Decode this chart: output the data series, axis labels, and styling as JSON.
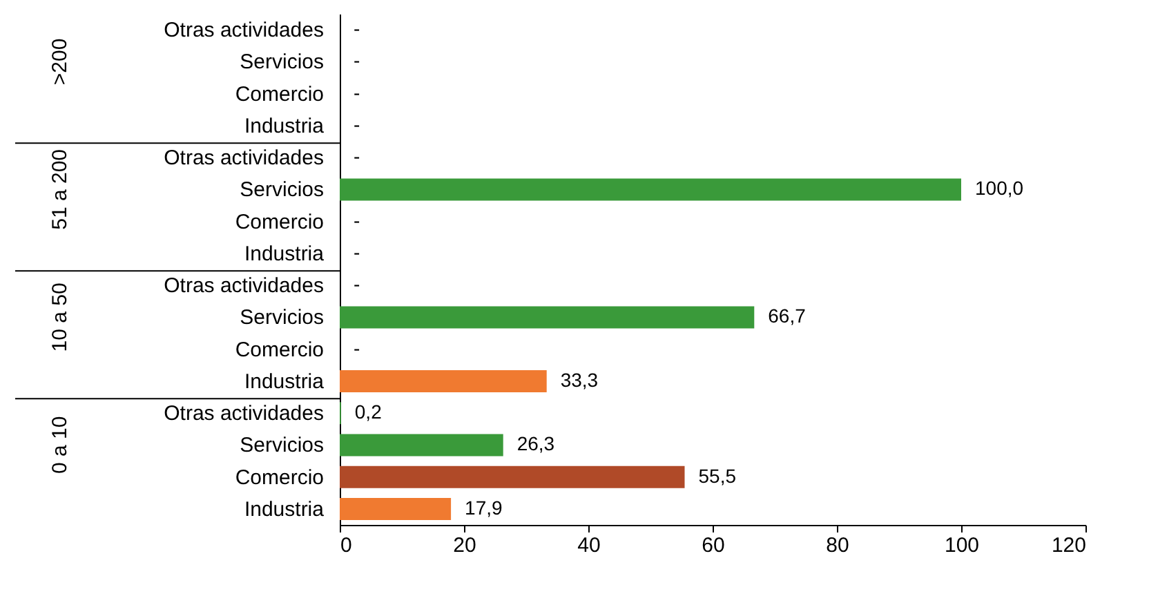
{
  "chart_data": {
    "type": "bar",
    "orientation": "horizontal",
    "categories": [
      "Otras actividades",
      "Servicios",
      "Comercio",
      "Industria",
      "Otras actividades",
      "Servicios",
      "Comercio",
      "Industria",
      "Otras actividades",
      "Servicios",
      "Comercio",
      "Industria",
      "Otras actividades",
      "Servicios",
      "Comercio",
      "Industria"
    ],
    "values": [
      null,
      null,
      null,
      null,
      null,
      100.0,
      null,
      null,
      null,
      66.7,
      null,
      33.3,
      0.2,
      26.3,
      55.5,
      17.9
    ],
    "value_labels": [
      "-",
      "-",
      "-",
      "-",
      "-",
      "100,0",
      "-",
      "-",
      "-",
      "66,7",
      "-",
      "33,3",
      "0,2",
      "26,3",
      "55,5",
      "17,9"
    ],
    "colors": [
      "#3a9a3a",
      "#3a9a3a",
      "#b04a28",
      "#f07a30",
      "#3a9a3a",
      "#3a9a3a",
      "#b04a28",
      "#f07a30",
      "#3a9a3a",
      "#3a9a3a",
      "#b04a28",
      "#f07a30",
      "#3a9a3a",
      "#3a9a3a",
      "#b04a28",
      "#f07a30"
    ],
    "annotations": [
      ">200",
      "51 a 200",
      "10 a 50",
      "0 a 10"
    ],
    "xlim": [
      0,
      120
    ],
    "xticks": [
      0,
      20,
      40,
      60,
      80,
      100,
      120
    ],
    "grid": false
  }
}
